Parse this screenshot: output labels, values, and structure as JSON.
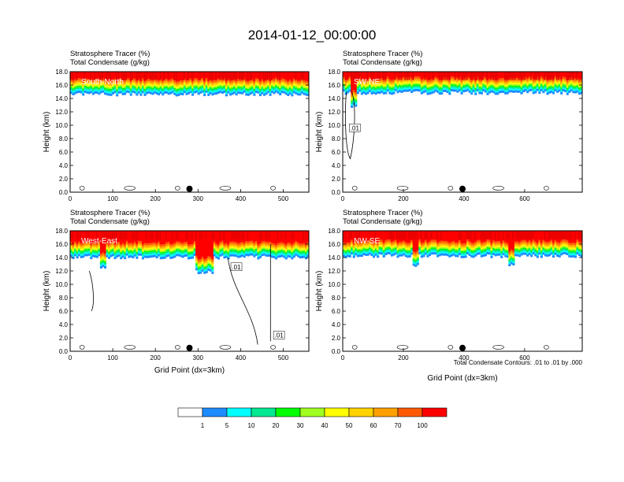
{
  "title": "2014-01-12_00:00:00",
  "colorbar": {
    "levels": [
      "1",
      "5",
      "10",
      "20",
      "30",
      "40",
      "50",
      "60",
      "70",
      "100"
    ],
    "colors": [
      "#ffffff",
      "#1e8cff",
      "#00ffff",
      "#00e890",
      "#00ff00",
      "#a0ff20",
      "#ffff00",
      "#ffd200",
      "#ffa000",
      "#ff5a00",
      "#ff0000"
    ]
  },
  "contour_note": "Total Condensate Contours: .01 to .01 by .000",
  "chart_data": [
    {
      "type": "heatmap",
      "panel": "South-North",
      "title_lines": [
        "Stratosphere Tracer   (%)",
        "Total Condensate   (g/kg)"
      ],
      "xlabel": "",
      "ylabel": "Height (km)",
      "xlim": [
        0,
        560
      ],
      "ylim": [
        0,
        18
      ],
      "xticks": [
        "0",
        "100",
        "200",
        "300",
        "400",
        "500"
      ],
      "yticks": [
        "0.0",
        "2.0",
        "4.0",
        "6.0",
        "8.0",
        "10.0",
        "12.0",
        "14.0",
        "16.0",
        "18.0"
      ],
      "marker_x": 280,
      "contour_labels": [],
      "tracer_base_km": 14.6
    },
    {
      "type": "heatmap",
      "panel": "SW-NE",
      "title_lines": [
        "Stratosphere Tracer   (%)",
        "Total Condensate   (g/kg)"
      ],
      "xlabel": "",
      "ylabel": "Height (km)",
      "xlim": [
        0,
        790
      ],
      "ylim": [
        0,
        18
      ],
      "xticks": [
        "0",
        "200",
        "400",
        "600"
      ],
      "yticks": [
        "0.0",
        "2.0",
        "4.0",
        "6.0",
        "8.0",
        "10.0",
        "12.0",
        "14.0",
        "16.0",
        "18.0"
      ],
      "marker_x": 395,
      "contour_labels": [
        ".01"
      ],
      "tracer_base_km": 14.8
    },
    {
      "type": "heatmap",
      "panel": "West-East",
      "title_lines": [
        "Stratosphere Tracer   (%)",
        "Total Condensate   (g/kg)"
      ],
      "xlabel": "Grid Point (dx=3km)",
      "ylabel": "Height (km)",
      "xlim": [
        0,
        560
      ],
      "ylim": [
        0,
        18
      ],
      "xticks": [
        "0",
        "100",
        "200",
        "300",
        "400",
        "500"
      ],
      "yticks": [
        "0.0",
        "2.0",
        "4.0",
        "6.0",
        "8.0",
        "10.0",
        "12.0",
        "14.0",
        "16.0",
        "18.0"
      ],
      "marker_x": 280,
      "contour_labels": [
        ".01",
        ".01"
      ],
      "tracer_base_km": 14.0
    },
    {
      "type": "heatmap",
      "panel": "NW-SE",
      "title_lines": [
        "Stratosphere Tracer   (%)",
        "Total Condensate   (g/kg)"
      ],
      "xlabel": "Grid Point (dx=3km)",
      "ylabel": "Height (km)",
      "xlim": [
        0,
        790
      ],
      "ylim": [
        0,
        18
      ],
      "xticks": [
        "0",
        "200",
        "400",
        "600"
      ],
      "yticks": [
        "0.0",
        "2.0",
        "4.0",
        "6.0",
        "8.0",
        "10.0",
        "12.0",
        "14.0",
        "16.0",
        "18.0"
      ],
      "marker_x": 395,
      "contour_labels": [],
      "tracer_base_km": 14.2
    }
  ]
}
